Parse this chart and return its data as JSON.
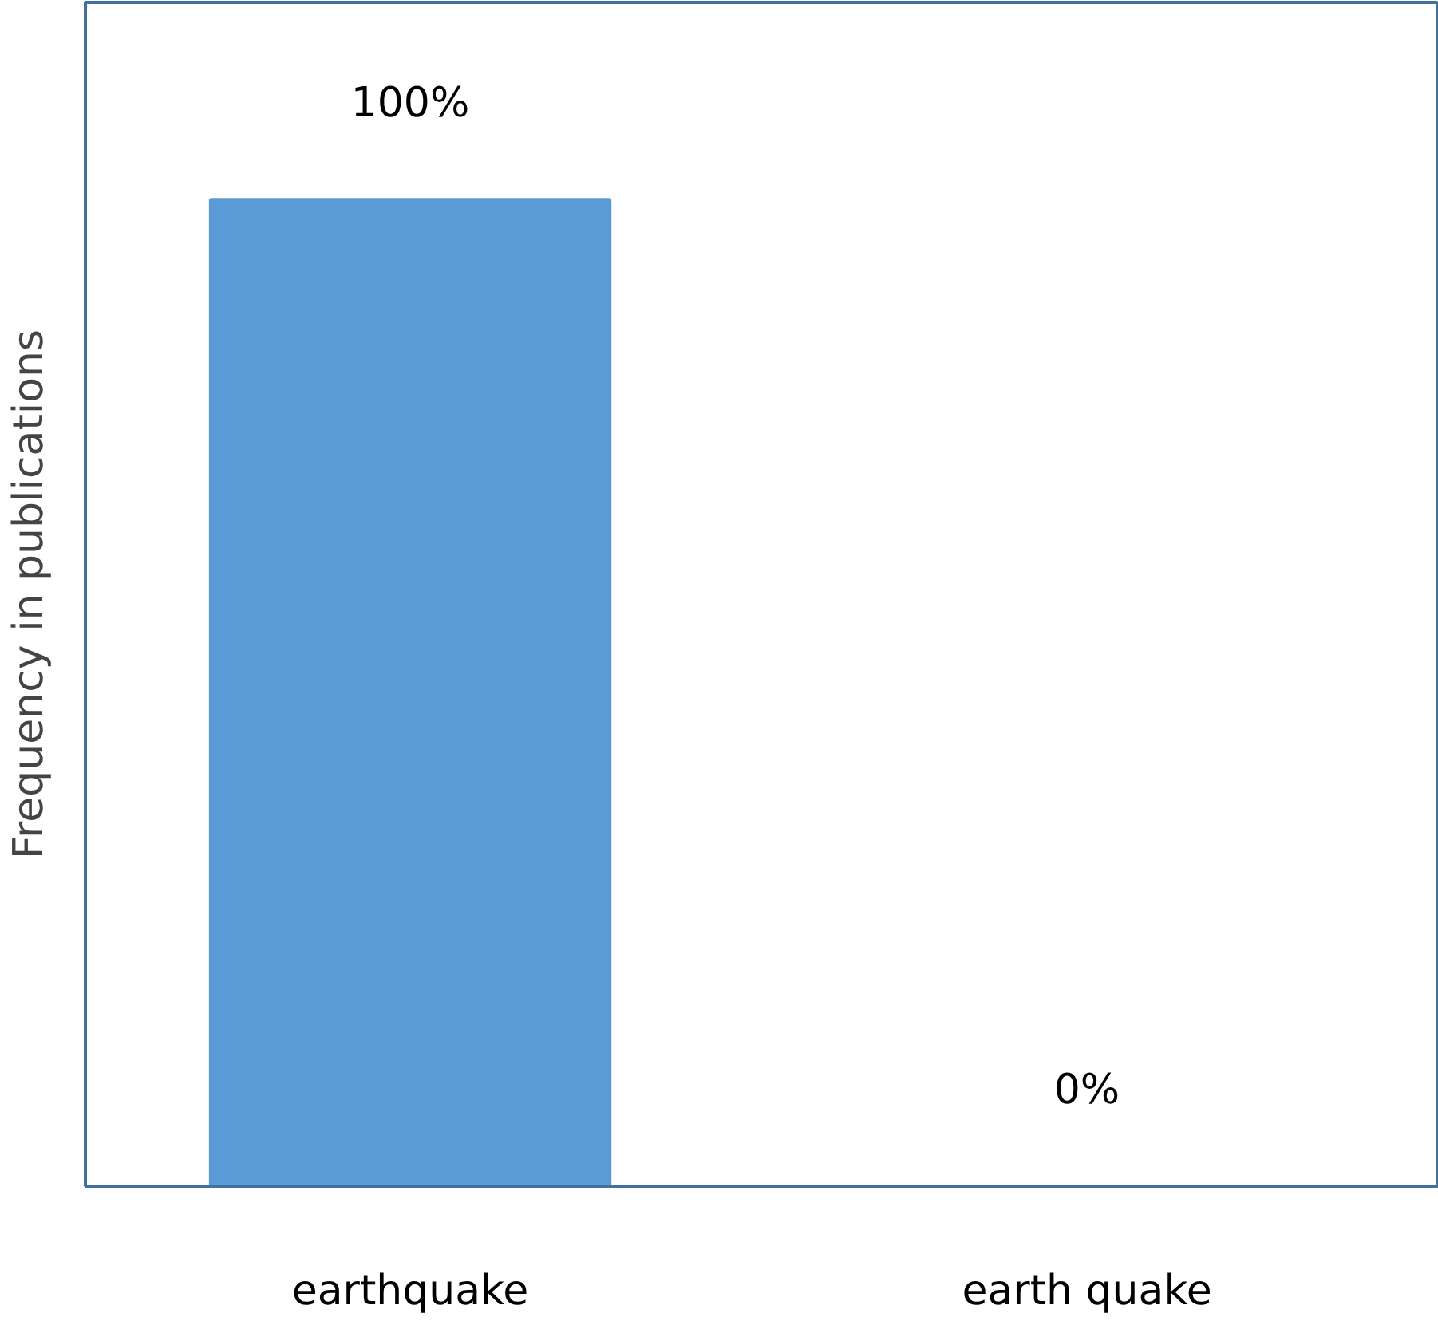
{
  "chart_data": {
    "type": "bar",
    "ylabel": "Frequency in publications",
    "categories": [
      "earthquake",
      "earth quake"
    ],
    "values": [
      100,
      0
    ],
    "value_labels": [
      "100%",
      "0%"
    ],
    "color": "#5b9bd5",
    "ylim": [
      0,
      120
    ],
    "tick_labels": "x",
    "grid": false
  }
}
